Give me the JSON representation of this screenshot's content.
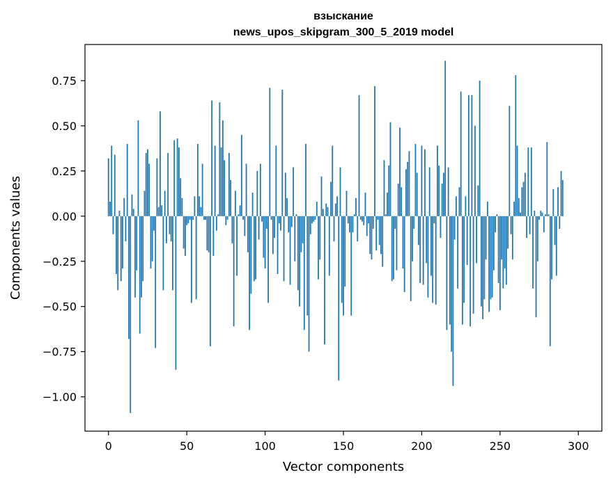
{
  "chart_data": {
    "type": "bar",
    "title_line1": "взыскание",
    "title_line2": "news_upos_skipgram_300_5_2019 model",
    "xlabel": "Vector components",
    "ylabel": "Components values",
    "xlim": [
      -15,
      315
    ],
    "ylim": [
      -1.19,
      0.95
    ],
    "xticks": [
      0,
      50,
      100,
      150,
      200,
      250,
      300
    ],
    "yticks": [
      -1.0,
      -0.75,
      -0.5,
      -0.25,
      0.0,
      0.25,
      0.5,
      0.75
    ],
    "ytick_labels": [
      "−1.00",
      "−0.75",
      "−0.50",
      "−0.25",
      "0.00",
      "0.25",
      "0.50",
      "0.75"
    ],
    "grid": false,
    "bar_color": "#1f77b4",
    "values": [
      0.32,
      0.08,
      0.39,
      -0.1,
      0.34,
      -0.32,
      -0.41,
      0.03,
      -0.36,
      -0.29,
      0.1,
      -0.14,
      0.4,
      -0.68,
      -1.09,
      0.12,
      0.04,
      -0.45,
      -0.3,
      0.53,
      -0.65,
      -0.45,
      -0.36,
      0.14,
      0.35,
      0.37,
      0.29,
      -0.29,
      -0.25,
      -0.08,
      -0.73,
      0.32,
      0.05,
      0.58,
      0.06,
      -0.41,
      0.14,
      -0.15,
      0.35,
      -0.1,
      -0.14,
      -0.41,
      0.42,
      -0.85,
      0.43,
      0.38,
      0.21,
      0.1,
      -0.18,
      -0.22,
      -0.05,
      -0.04,
      -0.02,
      -0.48,
      -0.02,
      0.11,
      -0.46,
      0.4,
      0.11,
      0.05,
      0.29,
      -0.02,
      -0.02,
      -0.19,
      -0.2,
      -0.72,
      0.64,
      -0.22,
      0.39,
      -0.08,
      0.01,
      0.63,
      0.38,
      0.53,
      0.31,
      -0.05,
      -0.02,
      0.35,
      0.2,
      -0.15,
      -0.61,
      0.14,
      -0.33,
      0.01,
      0.06,
      0.45,
      -0.02,
      -0.11,
      0.29,
      -0.2,
      -0.63,
      -0.43,
      0.13,
      -0.36,
      -0.35,
      0.25,
      -0.13,
      0.29,
      -0.03,
      -0.23,
      -0.29,
      -0.07,
      -0.48,
      0.71,
      -0.02,
      -0.21,
      -0.12,
      0.39,
      -0.32,
      -0.04,
      -0.08,
      0.7,
      -0.36,
      0.24,
      0.1,
      -0.09,
      -0.38,
      -0.06,
      0.27,
      -0.25,
      0.01,
      -0.41,
      -0.5,
      -0.2,
      -0.15,
      -0.63,
      0.4,
      -0.55,
      -0.75,
      -0.1,
      -0.04,
      -0.03,
      -0.02,
      0.08,
      -0.35,
      -0.24,
      0.22,
      0.04,
      -0.71,
      0.07,
      0.05,
      -0.33,
      0.19,
      0.39,
      -0.14,
      0.07,
      0.11,
      -0.91,
      0.27,
      -0.48,
      -0.55,
      -0.39,
      0.14,
      -0.04,
      -0.09,
      -0.55,
      -0.09,
      0.01,
      0.1,
      -0.14,
      0.67,
      -0.02,
      -0.03,
      -0.05,
      0.13,
      -0.11,
      -0.04,
      -0.21,
      -0.24,
      -0.07,
      0.72,
      -0.19,
      -0.02,
      -0.16,
      -0.21,
      -0.28,
      0.31,
      0.01,
      0.13,
      0.28,
      0.52,
      -0.36,
      -0.35,
      -0.07,
      -0.3,
      0.18,
      0.49,
      0.16,
      -0.29,
      -0.42,
      0.26,
      0.3,
      0.36,
      -0.47,
      -0.25,
      -0.07,
      0.4,
      0.24,
      -0.16,
      -0.37,
      0.39,
      -0.38,
      0.37,
      -0.26,
      -0.45,
      0.27,
      -0.33,
      -0.48,
      -0.04,
      -0.49,
      0.39,
      0.28,
      -0.12,
      0.18,
      0.24,
      0.86,
      -0.63,
      0.27,
      -0.6,
      -0.75,
      -0.94,
      -0.13,
      0.11,
      -0.4,
      0.16,
      0.69,
      -0.6,
      -0.48,
      0.11,
      -0.27,
      0.67,
      -0.61,
      0.67,
      -0.54,
      0.5,
      -0.26,
      0.17,
      0.75,
      -0.5,
      -0.57,
      -0.46,
      -0.24,
      0.08,
      -0.53,
      -0.46,
      -0.45,
      -0.3,
      -0.09,
      0.01,
      -0.37,
      -0.52,
      -0.24,
      -0.4,
      -0.29,
      -0.38,
      -0.18,
      0.61,
      -0.1,
      -0.24,
      0.08,
      0.78,
      0.39,
      0.1,
      0.02,
      0.16,
      0.19,
      0.24,
      -0.12,
      0.38,
      -0.1,
      0.38,
      -0.4,
      0.03,
      -0.56,
      -0.25,
      -0.02,
      0.03,
      0.02,
      -0.09,
      0.01,
      0.41,
      0.01,
      -0.72,
      -0.35,
      0.15,
      -0.16,
      -0.33,
      0.16,
      -0.07,
      0.25,
      0.2
    ]
  }
}
